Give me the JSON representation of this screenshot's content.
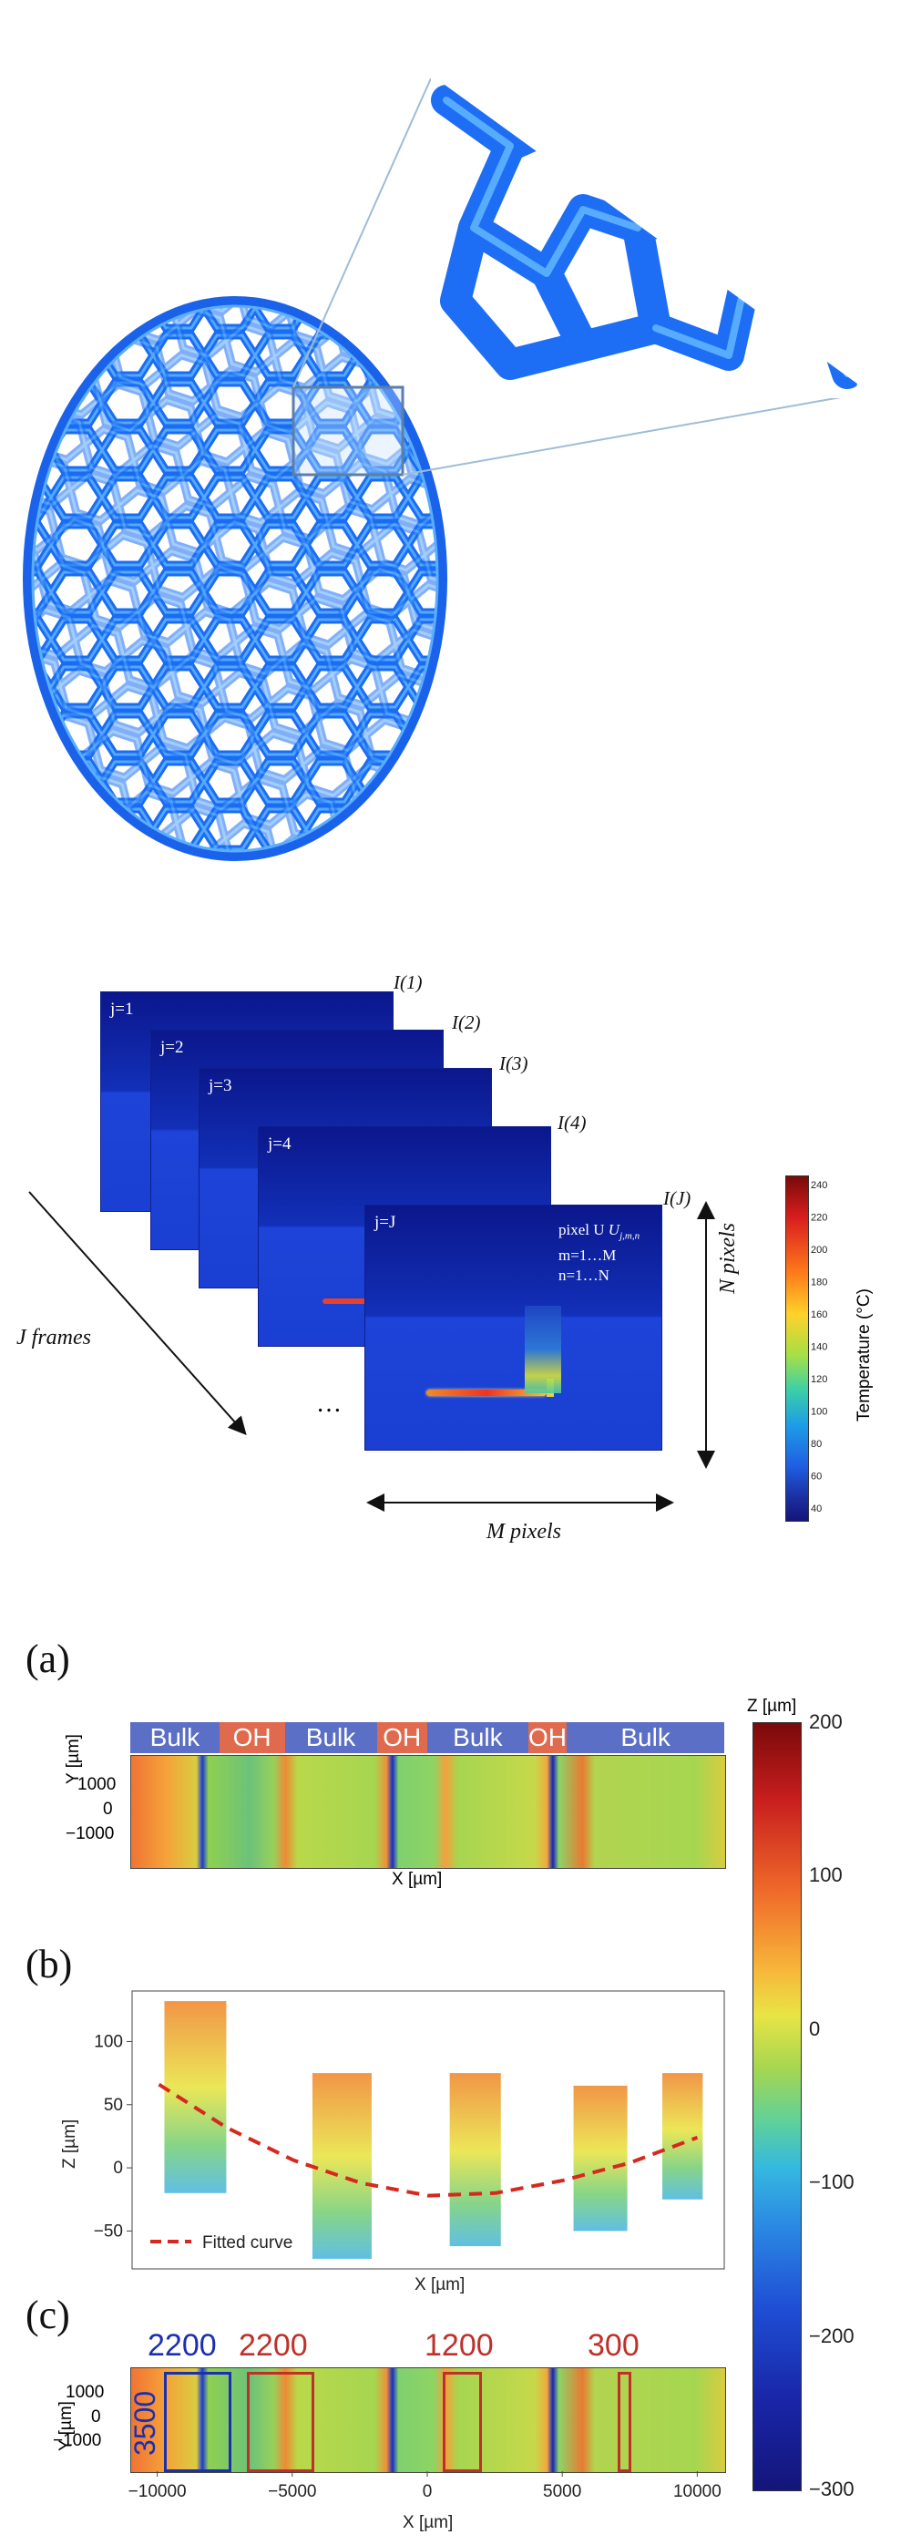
{
  "thermal": {
    "frames": [
      {
        "index_label": "j=1",
        "name": "I(1)"
      },
      {
        "index_label": "j=2",
        "name": "I(2)"
      },
      {
        "index_label": "j=3",
        "name": "I(3)"
      },
      {
        "index_label": "j=4",
        "name": "I(4)"
      },
      {
        "index_label": "j=J",
        "name": "I(J)"
      }
    ],
    "pixel_label": "pixel U",
    "pixel_subscript": "j,m,n",
    "m_range": "m=1…M",
    "n_range": "n=1…N",
    "j_frames_label": "J frames",
    "ellipsis": "…",
    "n_pixels_label": "N pixels",
    "m_pixels_label": "M pixels",
    "colorbar_title": "Temperature (°C)",
    "colorbar_ticks": [
      "240",
      "220",
      "200",
      "180",
      "160",
      "140",
      "120",
      "100",
      "80",
      "60",
      "40"
    ]
  },
  "panels": {
    "a_letter": "(a)",
    "b_letter": "(b)",
    "c_letter": "(c)",
    "bands": [
      {
        "label": "Bulk",
        "color": "#5b6fc6"
      },
      {
        "label": "OH",
        "color": "#e06a4d"
      },
      {
        "label": "Bulk",
        "color": "#5b6fc6"
      },
      {
        "label": "OH",
        "color": "#e06a4d"
      },
      {
        "label": "Bulk",
        "color": "#5b6fc6"
      },
      {
        "label": "OH",
        "color": "#e06a4d"
      },
      {
        "label": "Bulk",
        "color": "#5b6fc6"
      }
    ],
    "a_y_label": "Y [µm]",
    "a_x_label": "X [µm]",
    "a_y_ticks": [
      "1000",
      "0",
      "−1000"
    ],
    "b_y_label": "Z [µm]",
    "b_x_label": "X [µm]",
    "b_y_ticks": [
      "100",
      "50",
      "0",
      "−50"
    ],
    "b_legend": "Fitted curve",
    "c_y_label": "Y [µm]",
    "c_x_label": "X [µm]",
    "c_y_ticks": [
      "1000",
      "0",
      "−1000"
    ],
    "c_x_ticks": [
      "−10000",
      "−5000",
      "0",
      "5000",
      "10000"
    ],
    "c_box_labels": [
      {
        "text": "2200",
        "color": "#1b2fb0"
      },
      {
        "text": "2200",
        "color": "#c0302a"
      },
      {
        "text": "1200",
        "color": "#c0302a"
      },
      {
        "text": "300",
        "color": "#c0302a"
      }
    ],
    "c_side_label": "3500",
    "z_colorbar_title": "Z [µm]",
    "z_colorbar_ticks": [
      "200",
      "100",
      "0",
      "−100",
      "−200",
      "−300"
    ]
  },
  "chart_data": {
    "type": "scatter",
    "xlabel": "X [µm]",
    "ylabel": "Z [µm]",
    "xlim": [
      -11000,
      11000
    ],
    "ylim": [
      -80,
      140
    ],
    "fitted_curve": {
      "name": "Fitted curve",
      "x": [
        -10000,
        -7500,
        -5000,
        -2500,
        0,
        2500,
        5000,
        7500,
        10000
      ],
      "y": [
        66,
        32,
        6,
        -12,
        -22,
        -20,
        -10,
        4,
        24
      ]
    },
    "clusters": [
      {
        "x_range": [
          -9800,
          -7500
        ],
        "z_range": [
          -20,
          132
        ]
      },
      {
        "x_range": [
          -4300,
          -2100
        ],
        "z_range": [
          -72,
          75
        ]
      },
      {
        "x_range": [
          800,
          2700
        ],
        "z_range": [
          -62,
          75
        ]
      },
      {
        "x_range": [
          5400,
          7400
        ],
        "z_range": [
          -50,
          65
        ]
      },
      {
        "x_range": [
          8700,
          10200
        ],
        "z_range": [
          -25,
          75
        ]
      }
    ]
  }
}
